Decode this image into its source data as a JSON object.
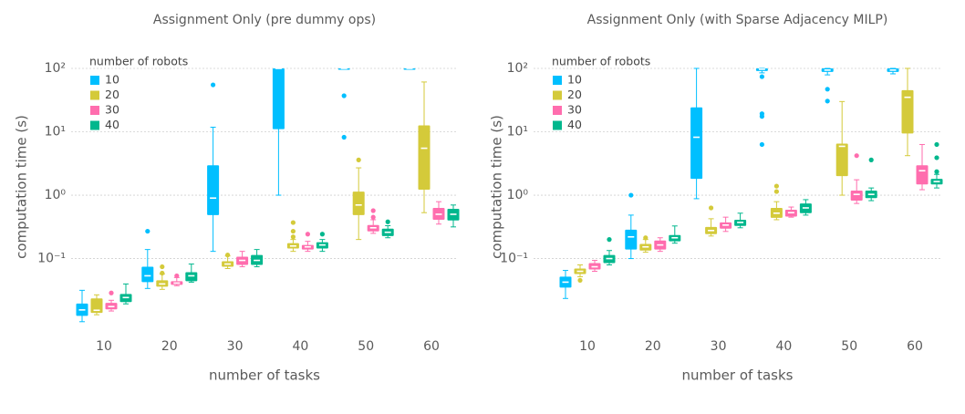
{
  "chart_data": [
    {
      "type": "box",
      "title": "Assignment Only (pre dummy ops)",
      "x_label": "number of tasks",
      "y_label": "computation time (s)",
      "categories": [
        "10",
        "20",
        "30",
        "40",
        "50",
        "60"
      ],
      "ylim": [
        0.0085,
        270
      ],
      "log_scale": true,
      "grid": true,
      "yticks": [
        {
          "value": 0.1,
          "label": "10⁻¹"
        },
        {
          "value": 1,
          "label": "10⁰"
        },
        {
          "value": 10,
          "label": "10¹"
        },
        {
          "value": 100,
          "label": "10²"
        }
      ],
      "legend_title": "number of robots",
      "legend": "upper-left",
      "series": [
        {
          "name": "10",
          "color": "#00BFFF",
          "boxes": [
            {
              "low": 0.0101,
              "q1": 0.0125,
              "median": 0.0155,
              "q3": 0.0195,
              "high": 0.0316,
              "outliers": []
            },
            {
              "low": 0.0338,
              "q1": 0.0425,
              "median": 0.0535,
              "q3": 0.0743,
              "high": 0.139,
              "outliers": [
                0.27
              ]
            },
            {
              "low": 0.13,
              "q1": 0.485,
              "median": 0.9,
              "q3": 2.96,
              "high": 11.8,
              "outliers": [
                55
              ]
            },
            {
              "low": 1.0,
              "q1": 11,
              "median": 100,
              "q3": 100,
              "high": 100,
              "outliers": []
            },
            {
              "low": 100,
              "q1": 100,
              "median": 100,
              "q3": 100,
              "high": 100,
              "outliers": [
                37,
                8.2
              ]
            },
            {
              "low": 100,
              "q1": 100,
              "median": 100,
              "q3": 100,
              "high": 100,
              "outliers": []
            }
          ]
        },
        {
          "name": "20",
          "color": "#D4CA3A",
          "boxes": [
            {
              "low": 0.013,
              "q1": 0.0139,
              "median": 0.0153,
              "q3": 0.0235,
              "high": 0.0268,
              "outliers": []
            },
            {
              "low": 0.0327,
              "q1": 0.0361,
              "median": 0.0398,
              "q3": 0.0454,
              "high": 0.0571,
              "outliers": [
                0.0743,
                0.059
              ]
            },
            {
              "low": 0.0696,
              "q1": 0.0743,
              "median": 0.082,
              "q3": 0.0906,
              "high": 0.11,
              "outliers": [
                0.114
              ]
            },
            {
              "low": 0.13,
              "q1": 0.144,
              "median": 0.158,
              "q3": 0.175,
              "high": 0.2,
              "outliers": [
                0.37,
                0.27,
                0.22
              ]
            },
            {
              "low": 0.2,
              "q1": 0.485,
              "median": 0.7,
              "q3": 1.14,
              "high": 2.7,
              "outliers": [
                3.6
              ]
            },
            {
              "low": 0.53,
              "q1": 1.22,
              "median": 5.5,
              "q3": 12.6,
              "high": 61,
              "outliers": []
            }
          ]
        },
        {
          "name": "30",
          "color": "#FF6DAE",
          "boxes": [
            {
              "low": 0.0149,
              "q1": 0.0158,
              "median": 0.0175,
              "q3": 0.02,
              "high": 0.022,
              "outliers": [
                0.0287
              ]
            },
            {
              "low": 0.0373,
              "q1": 0.0385,
              "median": 0.0411,
              "q3": 0.044,
              "high": 0.0502,
              "outliers": [
                0.0535
              ]
            },
            {
              "low": 0.0743,
              "q1": 0.0795,
              "median": 0.0936,
              "q3": 0.107,
              "high": 0.13,
              "outliers": []
            },
            {
              "low": 0.13,
              "q1": 0.139,
              "median": 0.153,
              "q3": 0.164,
              "high": 0.187,
              "outliers": [
                0.243
              ]
            },
            {
              "low": 0.25,
              "q1": 0.268,
              "median": 0.306,
              "q3": 0.338,
              "high": 0.41,
              "outliers": [
                0.57,
                0.45
              ]
            },
            {
              "low": 0.35,
              "q1": 0.41,
              "median": 0.5,
              "q3": 0.63,
              "high": 0.79,
              "outliers": []
            }
          ]
        },
        {
          "name": "40",
          "color": "#00B78D",
          "boxes": [
            {
              "low": 0.0193,
              "q1": 0.0206,
              "median": 0.0243,
              "q3": 0.0277,
              "high": 0.0398,
              "outliers": []
            },
            {
              "low": 0.0425,
              "q1": 0.044,
              "median": 0.0535,
              "q3": 0.061,
              "high": 0.082,
              "outliers": []
            },
            {
              "low": 0.0743,
              "q1": 0.0795,
              "median": 0.0936,
              "q3": 0.114,
              "high": 0.139,
              "outliers": []
            },
            {
              "low": 0.13,
              "q1": 0.144,
              "median": 0.164,
              "q3": 0.181,
              "high": 0.2,
              "outliers": [
                0.243
              ]
            },
            {
              "low": 0.213,
              "q1": 0.227,
              "median": 0.26,
              "q3": 0.296,
              "high": 0.33,
              "outliers": [
                0.38
              ]
            },
            {
              "low": 0.316,
              "q1": 0.4,
              "median": 0.5,
              "q3": 0.61,
              "high": 0.7,
              "outliers": []
            }
          ]
        }
      ]
    },
    {
      "type": "box",
      "title": "Assignment Only (with Sparse Adjacency MILP)",
      "x_label": "number of tasks",
      "y_label": "computation time (s)",
      "categories": [
        "10",
        "20",
        "30",
        "40",
        "50",
        "60"
      ],
      "ylim": [
        0.0085,
        270
      ],
      "log_scale": true,
      "grid": true,
      "yticks": [
        {
          "value": 0.1,
          "label": "10⁻¹"
        },
        {
          "value": 1,
          "label": "10⁰"
        },
        {
          "value": 10,
          "label": "10¹"
        },
        {
          "value": 100,
          "label": "10²"
        }
      ],
      "legend_title": "number of robots",
      "legend": "upper-left",
      "series": [
        {
          "name": "10",
          "color": "#00BFFF",
          "boxes": [
            {
              "low": 0.0235,
              "q1": 0.0349,
              "median": 0.0425,
              "q3": 0.0518,
              "high": 0.065,
              "outliers": []
            },
            {
              "low": 0.1,
              "q1": 0.139,
              "median": 0.22,
              "q3": 0.286,
              "high": 0.485,
              "outliers": [
                1.0
              ]
            },
            {
              "low": 0.88,
              "q1": 1.81,
              "median": 8.2,
              "q3": 24.3,
              "high": 100,
              "outliers": []
            },
            {
              "low": 85,
              "q1": 91,
              "median": 97,
              "q3": 100,
              "high": 100,
              "outliers": [
                74,
                19.3,
                17.5,
                6.3
              ]
            },
            {
              "low": 79,
              "q1": 88,
              "median": 94,
              "q3": 100,
              "high": 100,
              "outliers": [
                47,
                30.5
              ]
            },
            {
              "low": 82,
              "q1": 88,
              "median": 94,
              "q3": 100,
              "high": 100,
              "outliers": []
            }
          ]
        },
        {
          "name": "20",
          "color": "#D4CA3A",
          "boxes": [
            {
              "low": 0.0518,
              "q1": 0.0571,
              "median": 0.063,
              "q3": 0.0696,
              "high": 0.0795,
              "outliers": [
                0.0454
              ]
            },
            {
              "low": 0.126,
              "q1": 0.134,
              "median": 0.153,
              "q3": 0.17,
              "high": 0.2,
              "outliers": [
                0.213
              ]
            },
            {
              "low": 0.227,
              "q1": 0.243,
              "median": 0.277,
              "q3": 0.316,
              "high": 0.425,
              "outliers": [
                0.63
              ]
            },
            {
              "low": 0.41,
              "q1": 0.44,
              "median": 0.52,
              "q3": 0.63,
              "high": 0.79,
              "outliers": [
                1.39,
                1.14
              ]
            },
            {
              "low": 1.0,
              "q1": 2.0,
              "median": 5.9,
              "q3": 6.5,
              "high": 30,
              "outliers": []
            },
            {
              "low": 4.2,
              "q1": 9.4,
              "median": 35,
              "q3": 45.4,
              "high": 100,
              "outliers": []
            }
          ]
        },
        {
          "name": "30",
          "color": "#FF6DAE",
          "boxes": [
            {
              "low": 0.063,
              "q1": 0.0674,
              "median": 0.0743,
              "q3": 0.0848,
              "high": 0.0936,
              "outliers": []
            },
            {
              "low": 0.13,
              "q1": 0.139,
              "median": 0.164,
              "q3": 0.193,
              "high": 0.213,
              "outliers": []
            },
            {
              "low": 0.268,
              "q1": 0.296,
              "median": 0.338,
              "q3": 0.372,
              "high": 0.45,
              "outliers": []
            },
            {
              "low": 0.45,
              "q1": 0.46,
              "median": 0.53,
              "q3": 0.59,
              "high": 0.65,
              "outliers": []
            },
            {
              "low": 0.74,
              "q1": 0.82,
              "median": 1.03,
              "q3": 1.18,
              "high": 1.75,
              "outliers": [
                4.2
              ]
            },
            {
              "low": 1.22,
              "q1": 1.48,
              "median": 2.43,
              "q3": 2.96,
              "high": 6.3,
              "outliers": []
            }
          ]
        },
        {
          "name": "40",
          "color": "#00B78D",
          "boxes": [
            {
              "low": 0.0795,
              "q1": 0.0848,
              "median": 0.1,
              "q3": 0.114,
              "high": 0.134,
              "outliers": [
                0.2
              ]
            },
            {
              "low": 0.175,
              "q1": 0.187,
              "median": 0.213,
              "q3": 0.235,
              "high": 0.327,
              "outliers": []
            },
            {
              "low": 0.306,
              "q1": 0.327,
              "median": 0.372,
              "q3": 0.41,
              "high": 0.52,
              "outliers": []
            },
            {
              "low": 0.485,
              "q1": 0.52,
              "median": 0.63,
              "q3": 0.74,
              "high": 0.85,
              "outliers": []
            },
            {
              "low": 0.82,
              "q1": 0.9,
              "median": 1.03,
              "q3": 1.18,
              "high": 1.3,
              "outliers": [
                3.6
              ]
            },
            {
              "low": 1.3,
              "q1": 1.48,
              "median": 1.64,
              "q3": 1.81,
              "high": 2.13,
              "outliers": [
                6.3,
                3.9,
                2.35
              ]
            }
          ]
        }
      ]
    }
  ]
}
